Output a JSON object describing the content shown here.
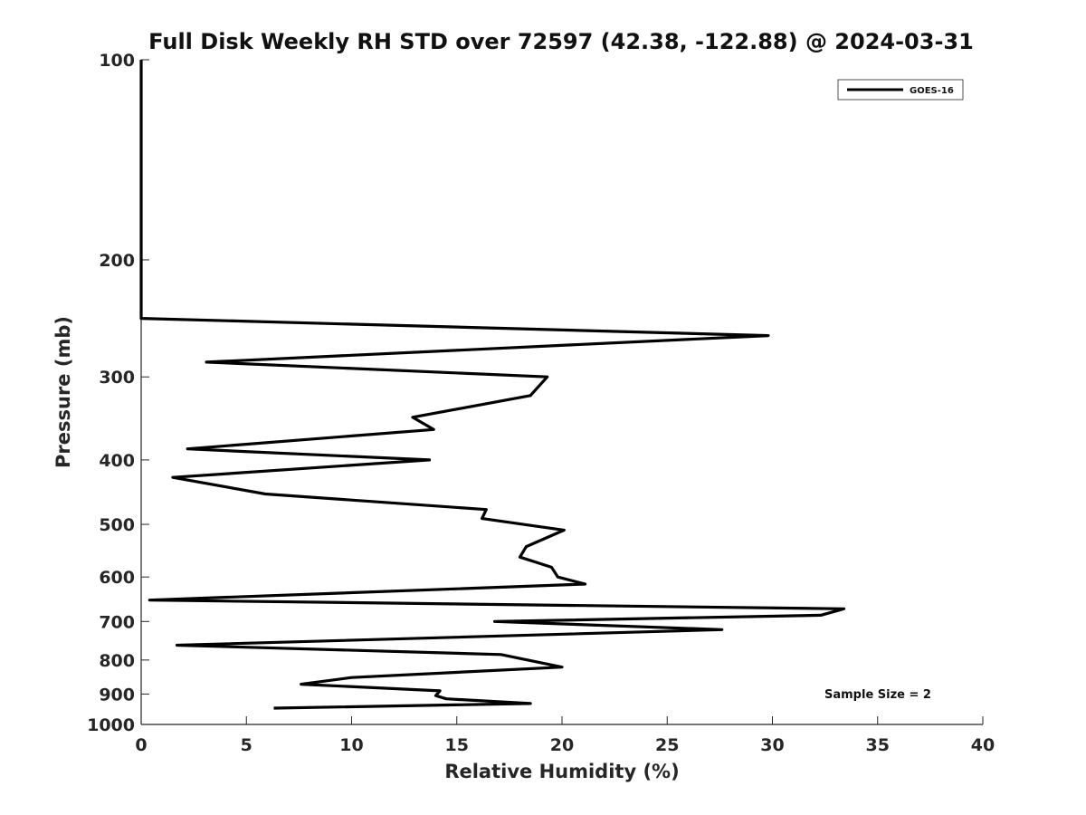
{
  "chart_data": {
    "type": "line",
    "title": "Full Disk Weekly RH STD over 72597 (42.38, -122.88) @ 2024-03-31",
    "xlabel": "Relative Humidity (%)",
    "ylabel": "Pressure (mb)",
    "xlim": [
      0,
      40
    ],
    "ylim": [
      100,
      1000
    ],
    "y_scale": "log",
    "y_inverted": true,
    "xticks": [
      0,
      5,
      10,
      15,
      20,
      25,
      30,
      35,
      40
    ],
    "yticks": [
      100,
      200,
      300,
      400,
      500,
      600,
      700,
      800,
      900,
      1000
    ],
    "grid": false,
    "legend_position": "top-right",
    "annotation": "Sample Size = 2",
    "series": [
      {
        "name": "GOES-16",
        "color": "#000000",
        "points": [
          [
            0.0,
            100
          ],
          [
            0.0,
            150
          ],
          [
            0.0,
            200
          ],
          [
            0.0,
            230
          ],
          [
            0.0,
            245
          ],
          [
            29.8,
            260
          ],
          [
            3.1,
            285
          ],
          [
            19.3,
            300
          ],
          [
            18.5,
            320
          ],
          [
            12.9,
            345
          ],
          [
            13.9,
            360
          ],
          [
            2.2,
            385
          ],
          [
            13.7,
            400
          ],
          [
            1.5,
            425
          ],
          [
            5.9,
            450
          ],
          [
            16.4,
            475
          ],
          [
            16.2,
            490
          ],
          [
            20.1,
            510
          ],
          [
            18.3,
            540
          ],
          [
            18.0,
            560
          ],
          [
            19.5,
            580
          ],
          [
            19.8,
            600
          ],
          [
            21.1,
            615
          ],
          [
            0.4,
            650
          ],
          [
            33.4,
            670
          ],
          [
            32.3,
            685
          ],
          [
            16.8,
            700
          ],
          [
            27.6,
            720
          ],
          [
            1.7,
            760
          ],
          [
            17.1,
            785
          ],
          [
            20.0,
            820
          ],
          [
            10.0,
            850
          ],
          [
            7.6,
            870
          ],
          [
            14.2,
            890
          ],
          [
            14.0,
            905
          ],
          [
            14.5,
            915
          ],
          [
            18.5,
            930
          ],
          [
            6.3,
            945
          ]
        ]
      }
    ]
  }
}
